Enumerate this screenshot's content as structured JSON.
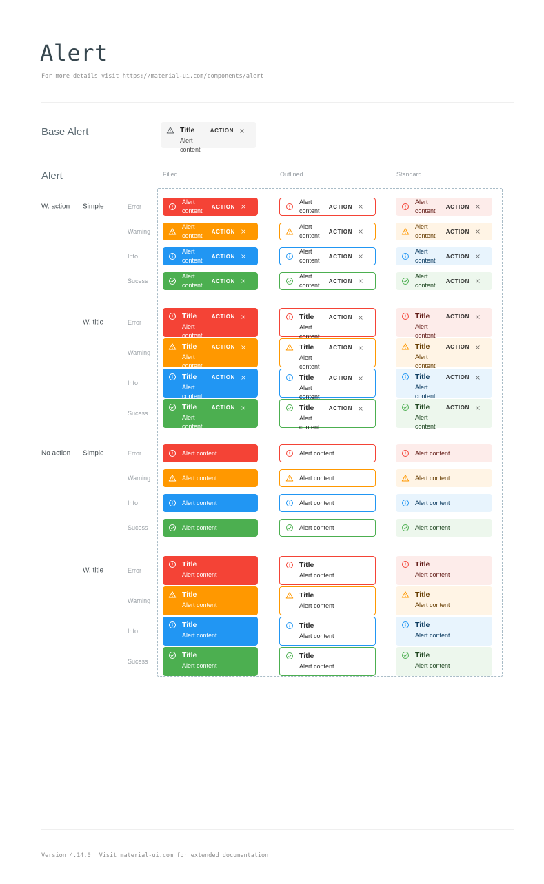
{
  "header": {
    "title": "Alert",
    "subtitle_prefix": "For more details visit",
    "subtitle_link": "https://material-ui.com/components/alert"
  },
  "base_alert": {
    "label": "Base Alert",
    "title": "Title",
    "content": "Alert content",
    "action_label": "ACTION",
    "icon": "warning-icon",
    "close_icon": "close-icon",
    "bg": "#f5f5f5"
  },
  "grid": {
    "section_label": "Alert",
    "outline_color": "#a9bcc7",
    "columns": [
      {
        "key": "filled",
        "label": "Filled"
      },
      {
        "key": "outlined",
        "label": "Outlined"
      },
      {
        "key": "standard",
        "label": "Standard"
      }
    ],
    "action_groups": [
      {
        "label": "W. action",
        "has_action": true,
        "variants": [
          {
            "label": "Simple",
            "has_title": false
          },
          {
            "label": "W. title",
            "has_title": true
          }
        ]
      },
      {
        "label": "No action",
        "has_action": false,
        "variants": [
          {
            "label": "Simple",
            "has_title": false
          },
          {
            "label": "W. title",
            "has_title": true
          }
        ]
      }
    ],
    "severities": [
      {
        "key": "error",
        "label": "Error",
        "icon": "error-icon",
        "color": "#f44336",
        "standard_bg": "#fdecea",
        "standard_text": "#611a15"
      },
      {
        "key": "warning",
        "label": "Warning",
        "icon": "warning-icon",
        "color": "#ff9800",
        "standard_bg": "#fff4e5",
        "standard_text": "#663c00"
      },
      {
        "key": "info",
        "label": "Info",
        "icon": "info-icon",
        "color": "#2196f3",
        "standard_bg": "#e8f4fd",
        "standard_text": "#0d3c61"
      },
      {
        "key": "sucess",
        "label": "Sucess",
        "icon": "success-icon",
        "color": "#4caf50",
        "standard_bg": "#edf7ed",
        "standard_text": "#1e4620"
      }
    ],
    "alert_title": "Title",
    "alert_content": "Alert content",
    "action_label": "ACTION"
  },
  "footer": {
    "version": "Version 4.14.0",
    "docs": "Visit material-ui.com for extended documentation"
  }
}
